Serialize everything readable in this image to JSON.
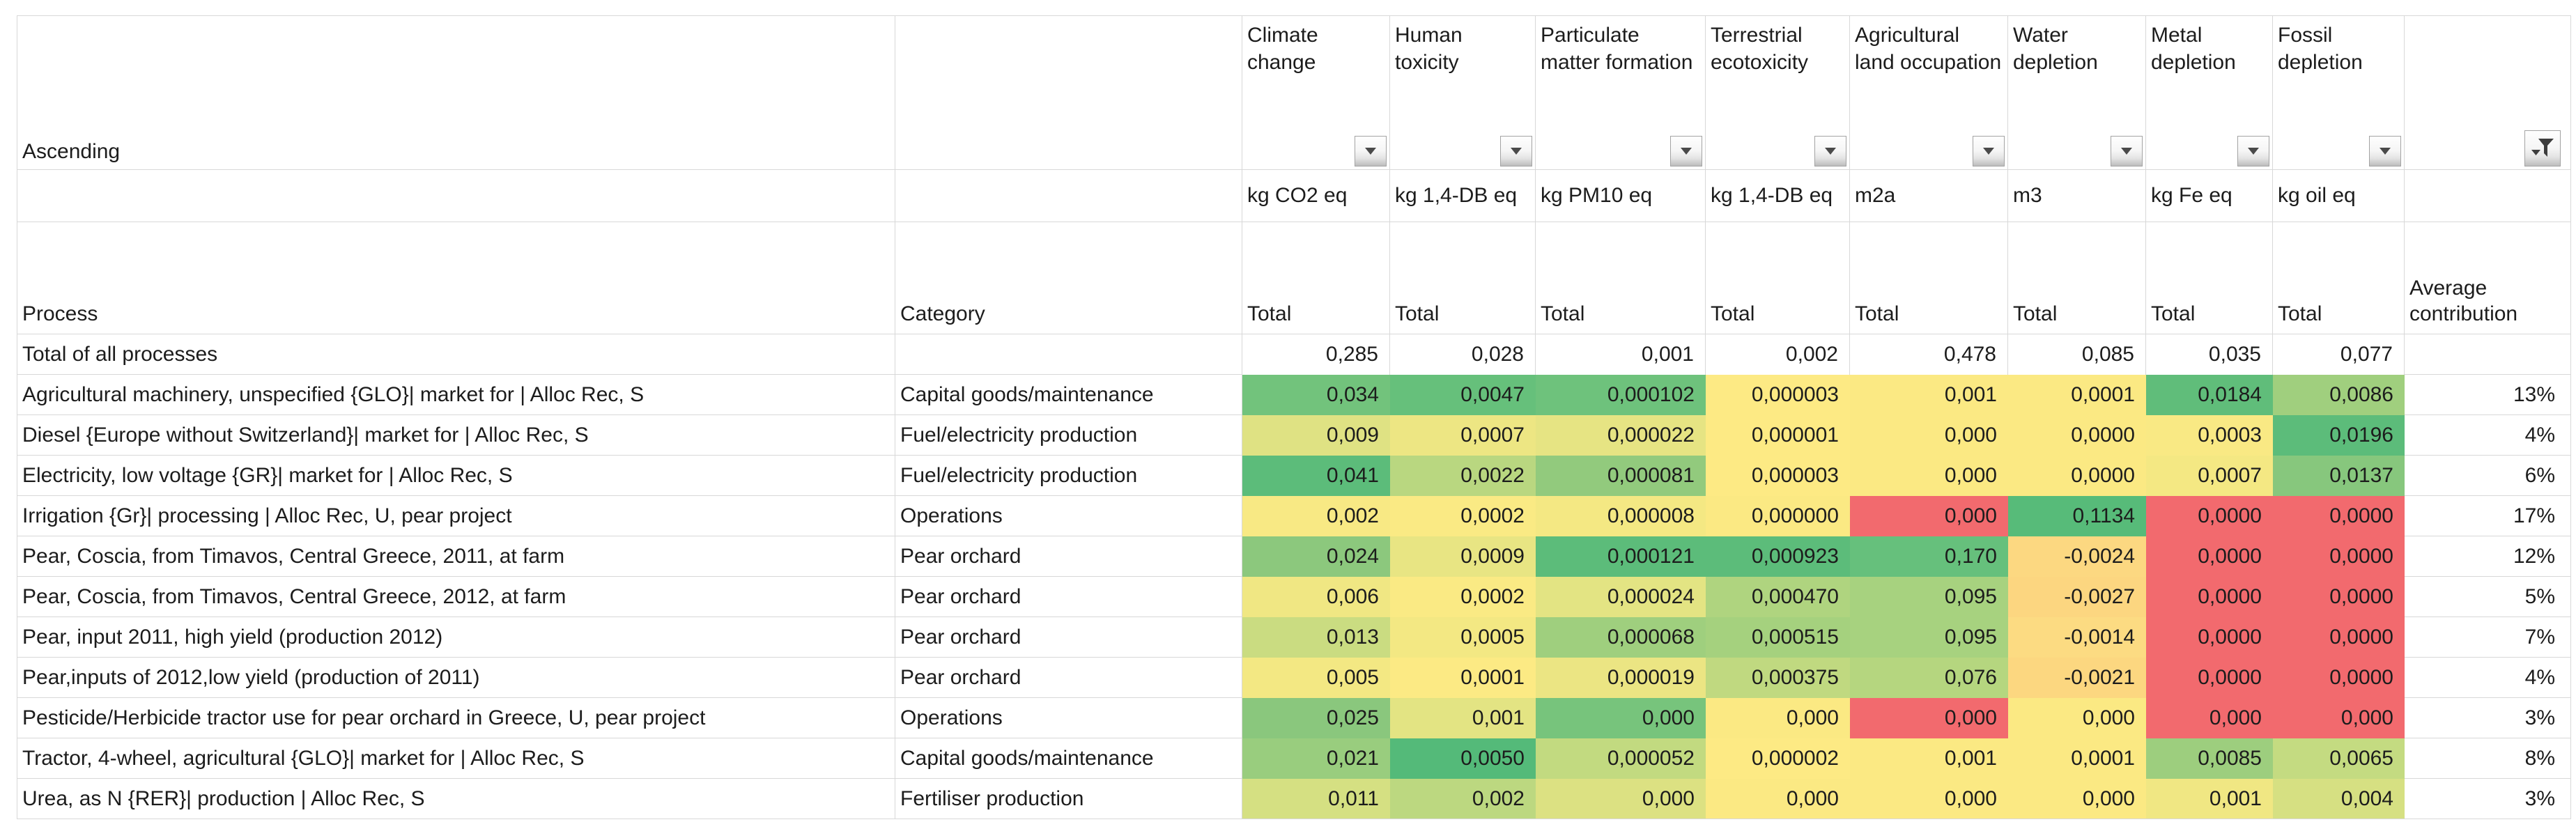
{
  "sheet": {
    "sort_label": "Ascending",
    "headers": {
      "process": "Process",
      "category": "Category",
      "total": "Total",
      "average": "Average contribution"
    },
    "impact_columns": [
      {
        "label": "Climate change",
        "unit": "kg CO2 eq"
      },
      {
        "label": "Human toxicity",
        "unit": "kg 1,4-DB eq"
      },
      {
        "label": "Particulate matter formation",
        "unit": "kg PM10 eq"
      },
      {
        "label": "Terrestrial ecotoxicity",
        "unit": "kg 1,4-DB eq"
      },
      {
        "label": "Agricultural land occupation",
        "unit": "m2a"
      },
      {
        "label": "Water depletion",
        "unit": "m3"
      },
      {
        "label": "Metal depletion",
        "unit": "kg Fe eq"
      },
      {
        "label": "Fossil depletion",
        "unit": "kg oil eq"
      }
    ],
    "total_row": {
      "process": "Total of all processes",
      "category": "",
      "values": [
        "0,285",
        "0,028",
        "0,001",
        "0,002",
        "0,478",
        "0,085",
        "0,035",
        "0,077"
      ],
      "average": ""
    },
    "rows": [
      {
        "process": "Agricultural machinery, unspecified {GLO}| market for | Alloc Rec, S",
        "category": "Capital goods/maintenance",
        "cells": [
          {
            "v": "0,034",
            "c": "#72C37C"
          },
          {
            "v": "0,0047",
            "c": "#66C07B"
          },
          {
            "v": "0,000102",
            "c": "#6EC27C"
          },
          {
            "v": "0,000003",
            "c": "#FDEA84"
          },
          {
            "v": "0,001",
            "c": "#FBE983"
          },
          {
            "v": "0,0001",
            "c": "#FBE983"
          },
          {
            "v": "0,0184",
            "c": "#60BD7A"
          },
          {
            "v": "0,0086",
            "c": "#A0CF7E"
          }
        ],
        "average": "13%"
      },
      {
        "process": "Diesel {Europe without Switzerland}| market for | Alloc Rec, S",
        "category": "Fuel/electricity production",
        "cells": [
          {
            "v": "0,009",
            "c": "#DFE283"
          },
          {
            "v": "0,0007",
            "c": "#EDE683"
          },
          {
            "v": "0,000022",
            "c": "#E6E483"
          },
          {
            "v": "0,000001",
            "c": "#FDEA84"
          },
          {
            "v": "0,000",
            "c": "#FBE983"
          },
          {
            "v": "0,0000",
            "c": "#FBE983"
          },
          {
            "v": "0,0003",
            "c": "#F9E984"
          },
          {
            "v": "0,0196",
            "c": "#5CBC7A"
          }
        ],
        "average": "4%"
      },
      {
        "process": "Electricity, low voltage {GR}| market for | Alloc Rec, S",
        "category": "Fuel/electricity production",
        "cells": [
          {
            "v": "0,041",
            "c": "#5CBC7A"
          },
          {
            "v": "0,0022",
            "c": "#B9D780"
          },
          {
            "v": "0,000081",
            "c": "#92CA7D"
          },
          {
            "v": "0,000003",
            "c": "#FDEA84"
          },
          {
            "v": "0,000",
            "c": "#FBE983"
          },
          {
            "v": "0,0000",
            "c": "#FBE983"
          },
          {
            "v": "0,0007",
            "c": "#F4E883"
          },
          {
            "v": "0,0137",
            "c": "#87C77D"
          }
        ],
        "average": "6%"
      },
      {
        "process": "Irrigation {Gr}| processing | Alloc Rec, U, pear project",
        "category": "Operations",
        "cells": [
          {
            "v": "0,002",
            "c": "#F8E984"
          },
          {
            "v": "0,0002",
            "c": "#FAEA84"
          },
          {
            "v": "0,000008",
            "c": "#F4E883"
          },
          {
            "v": "0,000000",
            "c": "#FBE983"
          },
          {
            "v": "0,000",
            "c": "#F26A6E"
          },
          {
            "v": "0,1134",
            "c": "#57BB79"
          },
          {
            "v": "0,0000",
            "c": "#F26A6E"
          },
          {
            "v": "0,0000",
            "c": "#F26A6E"
          }
        ],
        "average": "17%"
      },
      {
        "process": "Pear, Coscia, from Timavos, Central Greece, 2011, at farm",
        "category": "Pear orchard",
        "cells": [
          {
            "v": "0,024",
            "c": "#8CC87D"
          },
          {
            "v": "0,0009",
            "c": "#E8E583"
          },
          {
            "v": "0,000121",
            "c": "#5CBC7A"
          },
          {
            "v": "0,000923",
            "c": "#5CBC7A"
          },
          {
            "v": "0,170",
            "c": "#66C07C"
          },
          {
            "v": "-0,0024",
            "c": "#FCD881"
          },
          {
            "v": "0,0000",
            "c": "#F26A6E"
          },
          {
            "v": "0,0000",
            "c": "#F26A6E"
          }
        ],
        "average": "12%"
      },
      {
        "process": "Pear, Coscia, from Timavos, Central Greece, 2012, at farm",
        "category": "Pear orchard",
        "cells": [
          {
            "v": "0,006",
            "c": "#F0E783"
          },
          {
            "v": "0,0002",
            "c": "#FAEA84"
          },
          {
            "v": "0,000024",
            "c": "#E3E483"
          },
          {
            "v": "0,000470",
            "c": "#AFD47F"
          },
          {
            "v": "0,095",
            "c": "#A7D27F"
          },
          {
            "v": "-0,0027",
            "c": "#FCD680"
          },
          {
            "v": "0,0000",
            "c": "#F26A6E"
          },
          {
            "v": "0,0000",
            "c": "#F26A6E"
          }
        ],
        "average": "5%"
      },
      {
        "process": "Pear, input 2011, high yield (production 2012)",
        "category": "Pear orchard",
        "cells": [
          {
            "v": "0,013",
            "c": "#CADC81"
          },
          {
            "v": "0,0005",
            "c": "#F3E883"
          },
          {
            "v": "0,000068",
            "c": "#9FCF7E"
          },
          {
            "v": "0,000515",
            "c": "#A5D17E"
          },
          {
            "v": "0,095",
            "c": "#A7D27F"
          },
          {
            "v": "-0,0014",
            "c": "#FCDB82"
          },
          {
            "v": "0,0000",
            "c": "#F26A6E"
          },
          {
            "v": "0,0000",
            "c": "#F26A6E"
          }
        ],
        "average": "7%"
      },
      {
        "process": "Pear,inputs of 2012,low yield (production of 2011)",
        "category": "Pear orchard",
        "cells": [
          {
            "v": "0,005",
            "c": "#F3E883"
          },
          {
            "v": "0,0001",
            "c": "#FCEA84"
          },
          {
            "v": "0,000019",
            "c": "#EBE583"
          },
          {
            "v": "0,000375",
            "c": "#C0D980"
          },
          {
            "v": "0,076",
            "c": "#B5D67F"
          },
          {
            "v": "-0,0021",
            "c": "#FCD780"
          },
          {
            "v": "0,0000",
            "c": "#F26A6E"
          },
          {
            "v": "0,0000",
            "c": "#F26A6E"
          }
        ],
        "average": "4%"
      },
      {
        "process": "Pesticide/Herbicide tractor use for pear orchard in Greece, U, pear project",
        "category": "Operations",
        "cells": [
          {
            "v": "0,025",
            "c": "#8AC77D"
          },
          {
            "v": "0,001",
            "c": "#E3E483"
          },
          {
            "v": "0,000",
            "c": "#77C47C"
          },
          {
            "v": "0,000",
            "c": "#FBE983"
          },
          {
            "v": "0,000",
            "c": "#F26A6E"
          },
          {
            "v": "0,000",
            "c": "#FBE983"
          },
          {
            "v": "0,000",
            "c": "#F26A6E"
          },
          {
            "v": "0,000",
            "c": "#F26A6E"
          }
        ],
        "average": "3%"
      },
      {
        "process": "Tractor, 4-wheel, agricultural {GLO}| market for | Alloc Rec, S",
        "category": "Capital goods/maintenance",
        "cells": [
          {
            "v": "0,021",
            "c": "#99CD7E"
          },
          {
            "v": "0,0050",
            "c": "#54BA79"
          },
          {
            "v": "0,000052",
            "c": "#C2DA80"
          },
          {
            "v": "0,000002",
            "c": "#FDEA84"
          },
          {
            "v": "0,001",
            "c": "#FBE983"
          },
          {
            "v": "0,0001",
            "c": "#FBE983"
          },
          {
            "v": "0,0085",
            "c": "#9DCE7E"
          },
          {
            "v": "0,0065",
            "c": "#C4DB81"
          }
        ],
        "average": "8%"
      },
      {
        "process": "Urea, as N {RER}| production | Alloc Rec, S",
        "category": "Fertiliser production",
        "cells": [
          {
            "v": "0,011",
            "c": "#D5E082"
          },
          {
            "v": "0,002",
            "c": "#BCD880"
          },
          {
            "v": "0,000",
            "c": "#DCE182"
          },
          {
            "v": "0,000",
            "c": "#FBE983"
          },
          {
            "v": "0,000",
            "c": "#FBE983"
          },
          {
            "v": "0,000",
            "c": "#FBE983"
          },
          {
            "v": "0,001",
            "c": "#F0E783"
          },
          {
            "v": "0,004",
            "c": "#D6E082"
          }
        ],
        "average": "3%"
      }
    ]
  },
  "icons": {
    "filter_dropdown": "chevron-down-icon",
    "active_filter": "funnel-filter-icon"
  },
  "colors": {
    "background": "#ffffff",
    "gridline": "#d8d8d8",
    "text": "#1c1c1c",
    "heatmap_red": "#F26A6E",
    "heatmap_yellow": "#FBE983",
    "heatmap_green": "#5CBC7A"
  }
}
